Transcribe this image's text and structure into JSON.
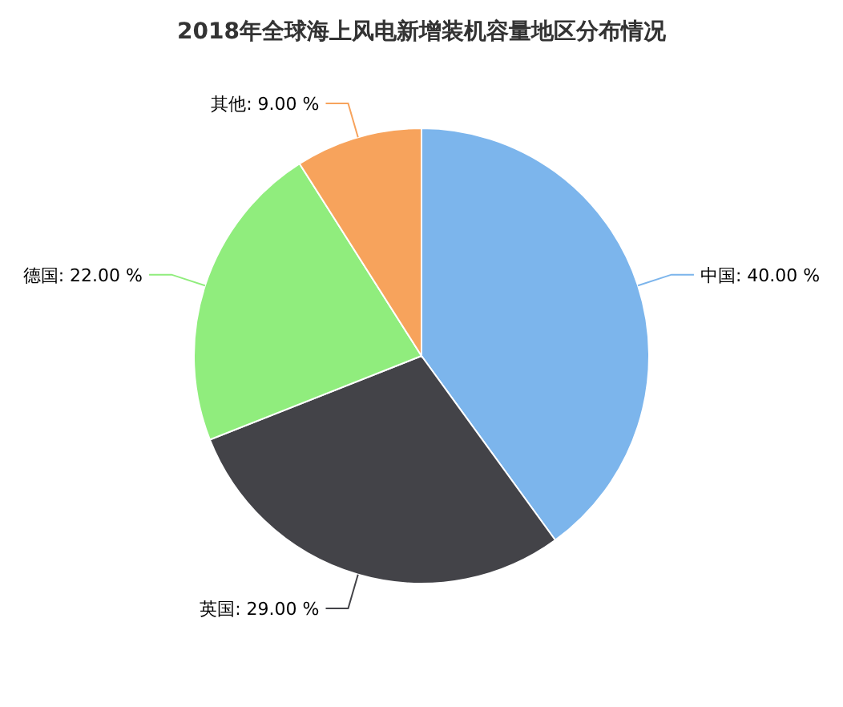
{
  "chart_data": {
    "type": "pie",
    "title": "2018年全球海上风电新增装机容量地区分布情况",
    "categories": [
      "中国",
      "英国",
      "德国",
      "其他"
    ],
    "values": [
      40,
      29,
      22,
      9
    ],
    "colors": [
      "#7cb5ec",
      "#434348",
      "#90ed7d",
      "#f7a35c"
    ],
    "value_labels": [
      "40.00 %",
      "29.00 %",
      "22.00 %",
      "9.00 %"
    ]
  }
}
